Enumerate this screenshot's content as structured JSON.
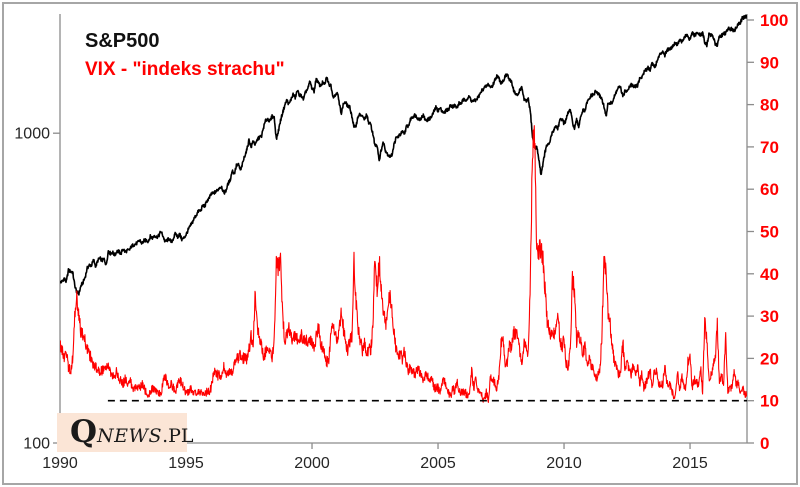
{
  "watermark": {
    "q": "Q",
    "news": "NEWS",
    "pl": ".PL"
  },
  "colors": {
    "sp500": "#000000",
    "vix": "#ff0000",
    "axis": "#8c8c8c",
    "frame_border": "#a6a6a6",
    "left_labels": "#262626",
    "right_labels": "#ff0000",
    "reference_line": "#000000",
    "logo_bg": "#fbe5d6"
  },
  "chart_data": {
    "type": "line",
    "title": "",
    "x_axis": {
      "ticks": [
        1990,
        1995,
        2000,
        2005,
        2010,
        2015
      ],
      "range": [
        1990,
        2017.26
      ],
      "grid": false
    },
    "left_axis": {
      "scale": "log",
      "ticks": [
        1000,
        100
      ],
      "range": [
        100,
        2424
      ]
    },
    "right_axis": {
      "scale": "linear",
      "ticks": [
        100,
        90,
        80,
        70,
        60,
        50,
        40,
        30,
        20,
        10,
        0
      ],
      "range": [
        0,
        100
      ]
    },
    "reference_line": {
      "axis": "right",
      "value": 10,
      "style": "dashed",
      "x_start": 1991.9
    },
    "legend_position": "top-left-inside",
    "series": [
      {
        "name": "SP500",
        "label": "S&P500",
        "color": "#000000",
        "axis": "left",
        "x_start": 1990.0,
        "x_step": 0.0833333,
        "values": [
          330,
          332,
          340,
          331,
          361,
          358,
          356,
          323,
          306,
          304,
          322,
          330,
          344,
          367,
          375,
          375,
          390,
          371,
          388,
          395,
          388,
          392,
          375,
          417,
          409,
          413,
          404,
          415,
          415,
          408,
          424,
          414,
          418,
          419,
          431,
          436,
          439,
          443,
          452,
          440,
          450,
          451,
          448,
          464,
          459,
          468,
          462,
          466,
          482,
          467,
          446,
          451,
          457,
          444,
          458,
          475,
          463,
          472,
          454,
          459,
          470,
          487,
          501,
          515,
          533,
          545,
          562,
          562,
          584,
          582,
          605,
          616,
          636,
          640,
          646,
          654,
          669,
          671,
          640,
          652,
          687,
          705,
          757,
          741,
          786,
          791,
          757,
          801,
          848,
          885,
          954,
          899,
          947,
          915,
          955,
          970,
          980,
          1049,
          1102,
          1112,
          1091,
          1134,
          1121,
          957,
          1017,
          1099,
          1164,
          1229,
          1280,
          1238,
          1286,
          1335,
          1302,
          1373,
          1329,
          1320,
          1283,
          1363,
          1389,
          1469,
          1394,
          1366,
          1499,
          1452,
          1421,
          1455,
          1431,
          1518,
          1437,
          1429,
          1315,
          1320,
          1366,
          1240,
          1160,
          1249,
          1256,
          1224,
          1211,
          1134,
          1041,
          1060,
          1139,
          1148,
          1130,
          1107,
          1147,
          1077,
          1067,
          990,
          912,
          916,
          815,
          886,
          936,
          880,
          856,
          841,
          848,
          917,
          964,
          975,
          990,
          1008,
          996,
          1051,
          1058,
          1112,
          1131,
          1145,
          1126,
          1107,
          1121,
          1141,
          1102,
          1104,
          1115,
          1130,
          1174,
          1212,
          1181,
          1204,
          1181,
          1157,
          1192,
          1191,
          1234,
          1220,
          1229,
          1207,
          1249,
          1248,
          1280,
          1281,
          1295,
          1311,
          1270,
          1270,
          1277,
          1304,
          1336,
          1378,
          1401,
          1418,
          1438,
          1407,
          1421,
          1482,
          1531,
          1503,
          1455,
          1474,
          1527,
          1549,
          1481,
          1468,
          1379,
          1331,
          1323,
          1386,
          1400,
          1280,
          1267,
          1283,
          1166,
          969,
          896,
          903,
          826,
          735,
          798,
          873,
          919,
          919,
          987,
          1021,
          1057,
          1036,
          1096,
          1115,
          1074,
          1104,
          1169,
          1187,
          1089,
          1031,
          1102,
          1049,
          1141,
          1183,
          1181,
          1258,
          1286,
          1327,
          1326,
          1364,
          1345,
          1321,
          1292,
          1219,
          1131,
          1253,
          1247,
          1258,
          1312,
          1366,
          1408,
          1398,
          1310,
          1362,
          1379,
          1407,
          1441,
          1412,
          1416,
          1426,
          1498,
          1515,
          1569,
          1598,
          1631,
          1606,
          1686,
          1633,
          1682,
          1757,
          1806,
          1848,
          1783,
          1859,
          1872,
          1884,
          1924,
          1960,
          1931,
          2003,
          1972,
          2018,
          2068,
          2059,
          1995,
          2105,
          2068,
          2086,
          2107,
          2063,
          2104,
          1972,
          1920,
          2079,
          2080,
          2044,
          1940,
          1932,
          2060,
          2065,
          2097,
          2099,
          2174,
          2171,
          2168,
          2126,
          2199,
          2239,
          2279,
          2364,
          2363,
          2384
        ]
      },
      {
        "name": "VIX",
        "label": "VIX - \"indeks strachu\"",
        "color": "#ff0000",
        "axis": "right",
        "x_start": 1990.0,
        "x_step": 0.0833333,
        "values": [
          23,
          22,
          20,
          21,
          18,
          17,
          20,
          30,
          35,
          30,
          26,
          26,
          24,
          22,
          21,
          20,
          18,
          18,
          17,
          17,
          17,
          18,
          18,
          19,
          17,
          16,
          16,
          17,
          15,
          15,
          14,
          15,
          14,
          15,
          14,
          13,
          13,
          13,
          13,
          14,
          13,
          12,
          11,
          12,
          13,
          13,
          12,
          12,
          11,
          14,
          16,
          14,
          13,
          14,
          13,
          12,
          14,
          15,
          14,
          13,
          12,
          12,
          13,
          12,
          12,
          12,
          12,
          12,
          11,
          12,
          12,
          12,
          13,
          16,
          17,
          16,
          16,
          16,
          18,
          16,
          16,
          17,
          16,
          19,
          20,
          20,
          21,
          20,
          20,
          20,
          22,
          25,
          23,
          36,
          28,
          24,
          23,
          20,
          22,
          22,
          21,
          20,
          24,
          44,
          41,
          45,
          30,
          24,
          26,
          28,
          25,
          24,
          26,
          24,
          24,
          26,
          24,
          25,
          23,
          24,
          24,
          23,
          25,
          28,
          24,
          22,
          21,
          19,
          20,
          26,
          28,
          26,
          24,
          27,
          31,
          27,
          24,
          22,
          24,
          25,
          43,
          33,
          27,
          24,
          22,
          24,
          20,
          23,
          22,
          28,
          45,
          36,
          43,
          36,
          31,
          28,
          31,
          35,
          31,
          26,
          22,
          21,
          21,
          20,
          22,
          18,
          17,
          18,
          17,
          16,
          17,
          17,
          16,
          15,
          16,
          16,
          14,
          16,
          13,
          13,
          13,
          12,
          14,
          15,
          13,
          12,
          11,
          13,
          12,
          15,
          12,
          12,
          12,
          12,
          11,
          12,
          17,
          13,
          15,
          12,
          12,
          11,
          10,
          12,
          10,
          16,
          15,
          14,
          13,
          16,
          24,
          24,
          18,
          19,
          23,
          22,
          26,
          26,
          26,
          21,
          18,
          24,
          23,
          21,
          40,
          70,
          72,
          45,
          45,
          46,
          44,
          36,
          29,
          26,
          26,
          26,
          26,
          31,
          25,
          22,
          25,
          19,
          18,
          22,
          40,
          35,
          24,
          26,
          24,
          21,
          23,
          18,
          20,
          18,
          18,
          15,
          16,
          17,
          25,
          43,
          42,
          30,
          28,
          23,
          19,
          18,
          16,
          17,
          24,
          17,
          19,
          17,
          16,
          19,
          16,
          18,
          14,
          16,
          13,
          14,
          16,
          17,
          13,
          17,
          17,
          14,
          14,
          14,
          18,
          14,
          14,
          13,
          11,
          11,
          17,
          12,
          16,
          14,
          13,
          19,
          21,
          13,
          15,
          14,
          14,
          18,
          12,
          29,
          24,
          15,
          16,
          18,
          20,
          28,
          14,
          16,
          14,
          26,
          12,
          13,
          13,
          17,
          14,
          14,
          12,
          13,
          12,
          11
        ]
      }
    ]
  }
}
